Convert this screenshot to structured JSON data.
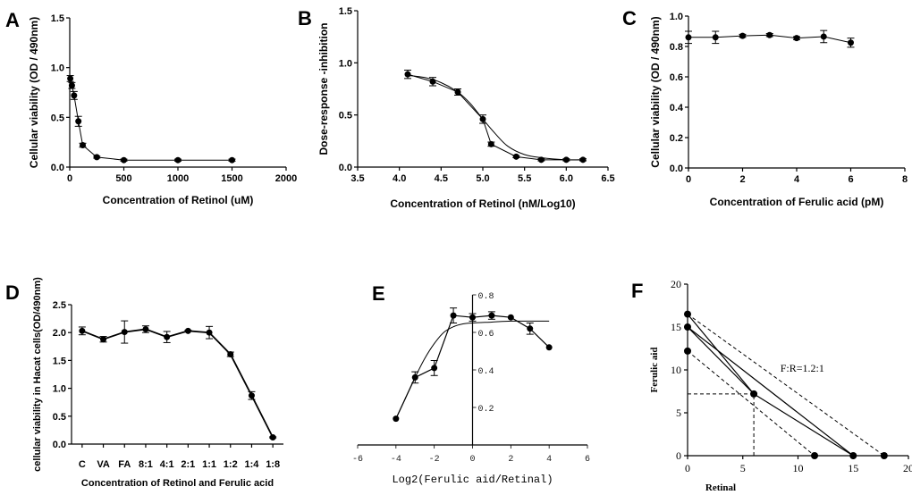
{
  "chart_data": [
    {
      "panel": "A",
      "type": "line",
      "xlabel": "Concentration of Retinol (uM)",
      "ylabel": "Cellular viability (OD / 490nm)",
      "xlim": [
        0,
        2000
      ],
      "ylim": [
        0,
        1.5
      ],
      "xticks": [
        0,
        500,
        1000,
        1500,
        2000
      ],
      "xtick_labels": [
        "0",
        "500",
        "1000",
        "1500",
        "2000"
      ],
      "yticks": [
        0,
        0.5,
        1.0,
        1.5
      ],
      "ytick_labels": [
        "0.0",
        "0.5",
        "1.0",
        "1.5"
      ],
      "series": [
        {
          "name": "Retinol",
          "x": [
            5,
            20,
            40,
            80,
            120,
            250,
            500,
            1000,
            1500
          ],
          "y": [
            0.89,
            0.82,
            0.72,
            0.46,
            0.22,
            0.1,
            0.07,
            0.07,
            0.07
          ],
          "err": [
            0.03,
            0.03,
            0.04,
            0.05,
            0.02,
            0.01,
            0.01,
            0.01,
            0.01
          ]
        }
      ]
    },
    {
      "panel": "B",
      "type": "line",
      "xlabel": "Concentration of Retinol (nM/Log10)",
      "ylabel": "Dose-response -inhibition",
      "xlim": [
        3.5,
        6.5
      ],
      "ylim": [
        0,
        1.5
      ],
      "xticks": [
        3.5,
        4.0,
        4.5,
        5.0,
        5.5,
        6.0,
        6.5
      ],
      "xtick_labels": [
        "3.5",
        "4.0",
        "4.5",
        "5.0",
        "5.5",
        "6.0",
        "6.5"
      ],
      "yticks": [
        0,
        0.5,
        1.0,
        1.5
      ],
      "ytick_labels": [
        "0.0",
        "0.5",
        "1.0",
        "1.5"
      ],
      "series": [
        {
          "name": "data",
          "x": [
            4.1,
            4.4,
            4.7,
            5.0,
            5.1,
            5.4,
            5.7,
            6.0,
            6.2
          ],
          "y": [
            0.89,
            0.82,
            0.72,
            0.46,
            0.22,
            0.1,
            0.07,
            0.07,
            0.07
          ],
          "err": [
            0.04,
            0.04,
            0.03,
            0.04,
            0.02,
            0.01,
            0.01,
            0.01,
            0.01
          ]
        },
        {
          "name": "fit",
          "x": [
            4.1,
            4.3,
            4.5,
            4.7,
            4.85,
            5.0,
            5.15,
            5.3,
            5.5,
            5.7,
            6.0,
            6.2
          ],
          "y": [
            0.88,
            0.86,
            0.81,
            0.72,
            0.61,
            0.46,
            0.32,
            0.2,
            0.12,
            0.09,
            0.07,
            0.07
          ]
        }
      ]
    },
    {
      "panel": "C",
      "type": "line",
      "xlabel": "Concentration of Ferulic acid (pM)",
      "ylabel": "Cellular viability (OD / 490nm)",
      "xlim": [
        0,
        8
      ],
      "ylim": [
        0,
        1.0
      ],
      "xticks": [
        0,
        2,
        4,
        6,
        8
      ],
      "xtick_labels": [
        "0",
        "2",
        "4",
        "6",
        "8"
      ],
      "yticks": [
        0,
        0.2,
        0.4,
        0.6,
        0.8,
        1.0
      ],
      "ytick_labels": [
        "0.0",
        "0.2",
        "0.4",
        "0.6",
        "0.8",
        "1.0"
      ],
      "series": [
        {
          "name": "Ferulic acid",
          "x": [
            0,
            1,
            2,
            3,
            4,
            5,
            6
          ],
          "y": [
            0.86,
            0.86,
            0.87,
            0.875,
            0.855,
            0.865,
            0.825
          ],
          "err": [
            0.04,
            0.04,
            0.01,
            0.01,
            0.01,
            0.04,
            0.03
          ]
        }
      ]
    },
    {
      "panel": "D",
      "type": "line",
      "xlabel": "Concentration of Retinol and Ferulic acid",
      "ylabel": "cellular viability in Hacat cells(OD/490nm)",
      "ylim": [
        0,
        2.5
      ],
      "categories": [
        "C",
        "VA",
        "FA",
        "8:1",
        "4:1",
        "2:1",
        "1:1",
        "1:2",
        "1:4",
        "1:8"
      ],
      "yticks": [
        0,
        0.5,
        1.0,
        1.5,
        2.0,
        2.5
      ],
      "ytick_labels": [
        "0.0",
        "0.5",
        "1.0",
        "1.5",
        "2.0",
        "2.5"
      ],
      "series": [
        {
          "name": "Hacat",
          "values": [
            2.03,
            1.88,
            2.01,
            2.06,
            1.92,
            2.03,
            2.0,
            1.61,
            0.87,
            0.12
          ],
          "err": [
            0.07,
            0.05,
            0.2,
            0.06,
            0.1,
            0.01,
            0.11,
            0.04,
            0.07,
            0.01
          ]
        }
      ]
    },
    {
      "panel": "E",
      "type": "line",
      "xlabel": "Log2(Ferulic aid/Retinal)",
      "xlim": [
        -6,
        6
      ],
      "ylim": [
        0,
        0.8
      ],
      "xticks": [
        -6,
        -4,
        -2,
        0,
        2,
        4,
        6
      ],
      "xtick_labels": [
        "-6",
        "-4",
        "-2",
        "0",
        "2",
        "4",
        "6"
      ],
      "yticks": [
        0.2,
        0.4,
        0.6,
        0.8
      ],
      "ytick_labels": [
        "0.2",
        "0.4",
        "0.6",
        "0.8"
      ],
      "series": [
        {
          "name": "data",
          "x": [
            -4,
            -3,
            -2,
            -1,
            0,
            1,
            2,
            3,
            4
          ],
          "y": [
            0.14,
            0.36,
            0.41,
            0.69,
            0.68,
            0.69,
            0.68,
            0.62,
            0.52
          ],
          "err": [
            0,
            0.03,
            0.04,
            0.04,
            0.02,
            0.02,
            0,
            0.03,
            0
          ]
        },
        {
          "name": "fit",
          "x": [
            -4,
            -3.5,
            -3,
            -2.5,
            -2,
            -1.5,
            -1,
            -0.5,
            0,
            1,
            2,
            3,
            4
          ],
          "y": [
            0.14,
            0.25,
            0.36,
            0.46,
            0.54,
            0.6,
            0.63,
            0.645,
            0.65,
            0.655,
            0.66,
            0.66,
            0.66
          ]
        }
      ]
    },
    {
      "panel": "F",
      "type": "scatter",
      "xlabel": "Retinal",
      "ylabel": "Ferulic aid",
      "xlim": [
        0,
        20
      ],
      "ylim": [
        0,
        20
      ],
      "xticks": [
        0,
        5,
        10,
        15,
        20
      ],
      "xtick_labels": [
        "0",
        "5",
        "10",
        "15",
        "20"
      ],
      "yticks": [
        0,
        5,
        10,
        15,
        20
      ],
      "ytick_labels": [
        "0",
        "5",
        "10",
        "15",
        "20"
      ],
      "annotation": "F:R=1.2:1",
      "points": [
        {
          "x": 0,
          "y": 16.5
        },
        {
          "x": 0,
          "y": 15
        },
        {
          "x": 0,
          "y": 12.2
        },
        {
          "x": 11.5,
          "y": 0
        },
        {
          "x": 15,
          "y": 0
        },
        {
          "x": 17.8,
          "y": 0
        },
        {
          "x": 6,
          "y": 7.2
        }
      ],
      "solid_lines": [
        {
          "x1": 0,
          "y1": 15,
          "x2": 15,
          "y2": 0
        },
        {
          "x1": 0,
          "y1": 16.5,
          "x2": 6,
          "y2": 7.2
        },
        {
          "x1": 0,
          "y1": 15,
          "x2": 6,
          "y2": 7.2
        },
        {
          "x1": 6,
          "y1": 7.2,
          "x2": 15,
          "y2": 0
        }
      ],
      "dashed_lines": [
        {
          "x1": 0,
          "y1": 16.5,
          "x2": 17.8,
          "y2": 0
        },
        {
          "x1": 0,
          "y1": 12.2,
          "x2": 11.5,
          "y2": 0
        },
        {
          "x1": 0,
          "y1": 7.2,
          "x2": 6,
          "y2": 7.2
        },
        {
          "x1": 6,
          "y1": 0,
          "x2": 6,
          "y2": 7.2
        }
      ]
    }
  ]
}
